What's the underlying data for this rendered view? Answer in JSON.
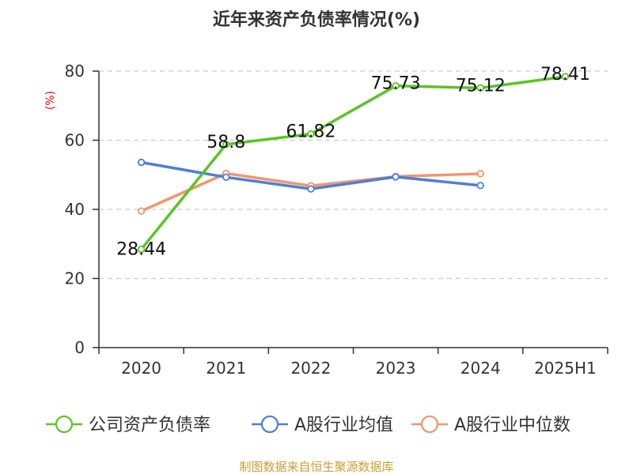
{
  "chart_data": {
    "type": "line",
    "title": "近年来资产负债率情况(%)",
    "ylabel": "(%)",
    "ylim": [
      0,
      80
    ],
    "yticks": [
      0,
      20,
      40,
      60,
      80
    ],
    "grid": true,
    "legend_position": "bottom",
    "categories": [
      "2020",
      "2021",
      "2022",
      "2023",
      "2024",
      "2025H1"
    ],
    "series": [
      {
        "name": "公司资产负债率",
        "color": "#5ac425",
        "values": [
          28.44,
          58.8,
          61.82,
          75.73,
          75.12,
          78.41
        ],
        "labels": [
          "28.44",
          "58.8",
          "61.82",
          "75.73",
          "75.12",
          "78.41"
        ]
      },
      {
        "name": "A股行业均值",
        "color": "#4d7fd8",
        "values": [
          53.6,
          49.3,
          45.9,
          49.4,
          46.9,
          null
        ]
      },
      {
        "name": "A股行业中位数",
        "color": "#f4956a",
        "values": [
          39.5,
          50.4,
          46.8,
          49.5,
          50.3,
          null
        ]
      }
    ]
  },
  "footer": {
    "source": "制图数据来自恒生聚源数据库"
  }
}
